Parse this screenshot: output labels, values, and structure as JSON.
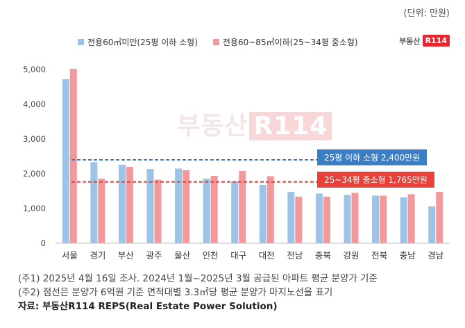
{
  "unit_label": "(단위: 만원)",
  "legend": {
    "small": "전용60㎡미만(25평 이하 소형)",
    "medium": "전용60~85㎡이하(25~34평 중소형)"
  },
  "logo": {
    "text": "부동산",
    "box": "R114"
  },
  "watermark": {
    "text": "부동산",
    "box": "R114"
  },
  "colors": {
    "small": "#9dc3e6",
    "medium": "#f4999b",
    "ref_small": "#3a7fc5",
    "ref_medium": "#e8413a"
  },
  "chart_data": {
    "type": "bar",
    "categories": [
      "서울",
      "경기",
      "부산",
      "광주",
      "울산",
      "인천",
      "대구",
      "대전",
      "전남",
      "충북",
      "강원",
      "전북",
      "충남",
      "경남"
    ],
    "series": [
      {
        "name": "전용60㎡미만(25평 이하 소형)",
        "values": [
          4720,
          2330,
          2260,
          2140,
          2150,
          1860,
          1780,
          1680,
          1480,
          1430,
          1390,
          1370,
          1320,
          1060
        ]
      },
      {
        "name": "전용60~85㎡이하(25~34평 중소형)",
        "values": [
          5020,
          1860,
          2200,
          1830,
          2100,
          1940,
          2080,
          1930,
          1340,
          1340,
          1450,
          1370,
          1410,
          1480
        ]
      }
    ],
    "ylim": [
      0,
      5000
    ],
    "yticks": [
      "0",
      "1,000",
      "2,000",
      "3,000",
      "4,000",
      "5,000"
    ],
    "ytick_values": [
      0,
      1000,
      2000,
      3000,
      4000,
      5000
    ],
    "reference_lines": [
      {
        "value": 2400,
        "label": "25평 이하 소형 2,400만원"
      },
      {
        "value": 1765,
        "label": "25~34평 중소형 1,765만원"
      }
    ],
    "grid": false
  },
  "notes": {
    "note1": "(주1) 2025년 4월 16일 조사. 2024년 1월~2025년 3월 공급된 아파트 평균 분양가 기준",
    "note2": "(주2) 점선은 분양가 6억원 기준 면적대별 3.3㎡당 평균 분양가 마지노선을 표기",
    "source": "자료: 부동산R114 REPS(Real Estate Power Solution)"
  }
}
